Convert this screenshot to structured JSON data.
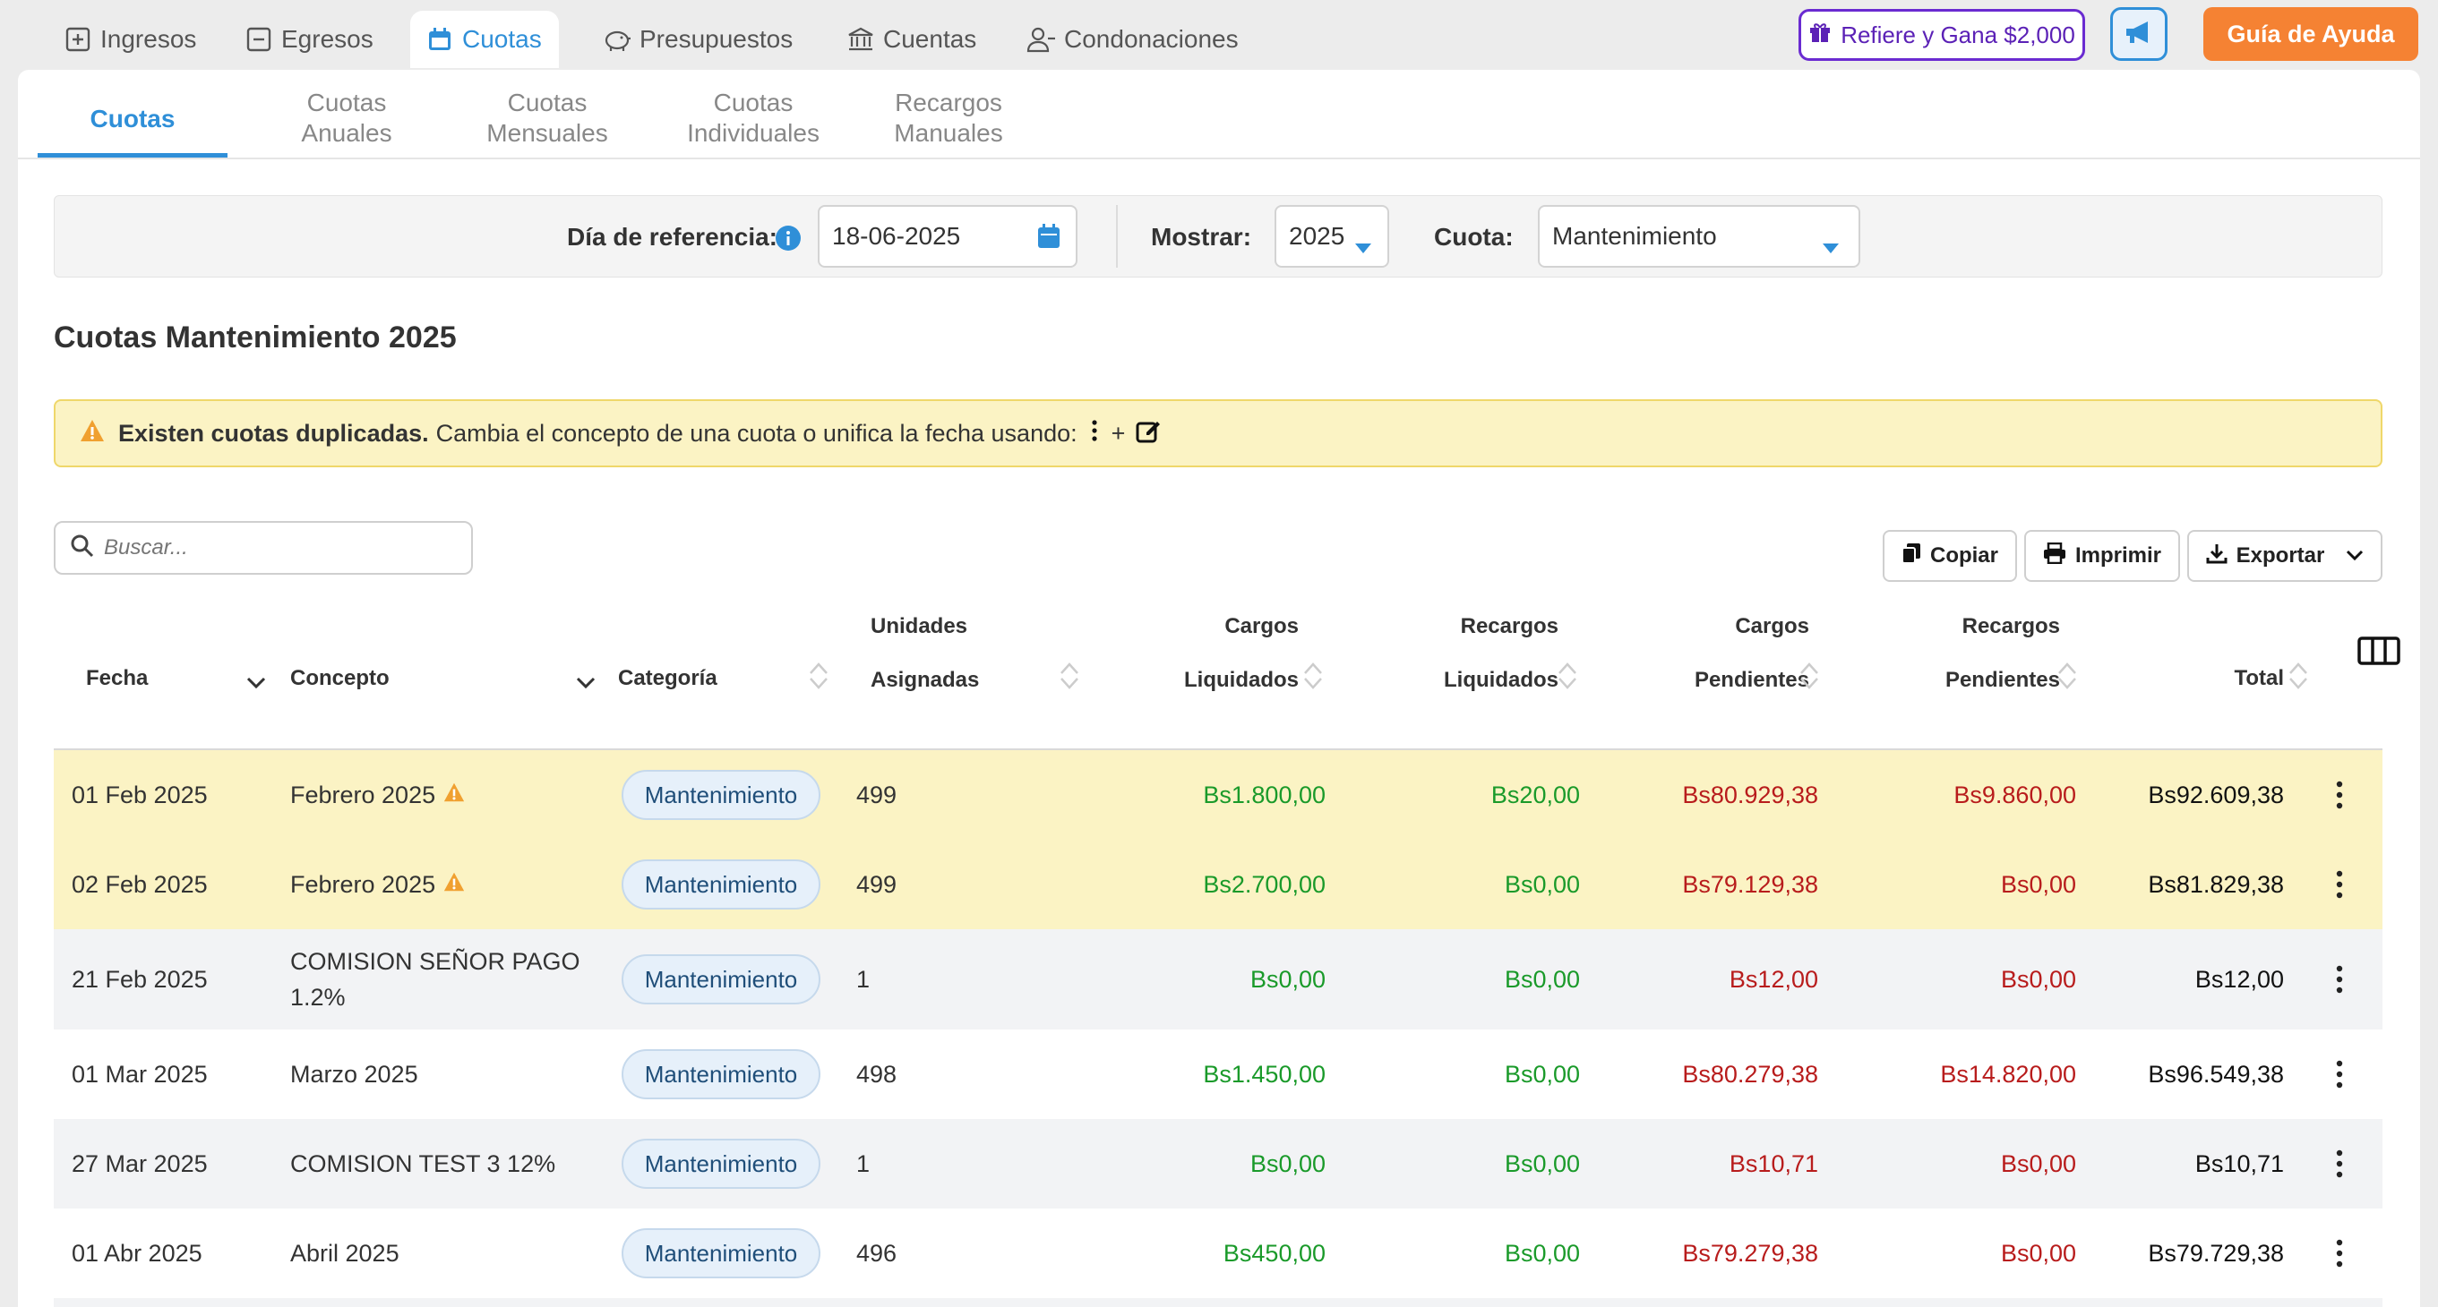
{
  "top_tabs": [
    {
      "label": "Ingresos"
    },
    {
      "label": "Egresos"
    },
    {
      "label": "Cuotas"
    },
    {
      "label": "Presupuestos"
    },
    {
      "label": "Cuentas"
    },
    {
      "label": "Condonaciones"
    }
  ],
  "refer_button": "Refiere y Gana $2,000",
  "help_button": "Guía de Ayuda",
  "sub_tabs": [
    {
      "label": "Cuotas"
    },
    {
      "line1": "Cuotas",
      "line2": "Anuales"
    },
    {
      "line1": "Cuotas",
      "line2": "Mensuales"
    },
    {
      "line1": "Cuotas",
      "line2": "Individuales"
    },
    {
      "line1": "Recargos",
      "line2": "Manuales"
    }
  ],
  "filters": {
    "ref_day_label": "Día de referencia:",
    "ref_day_value": "18-06-2025",
    "show_label": "Mostrar:",
    "show_value": "2025",
    "quota_label": "Cuota:",
    "quota_value": "Mantenimiento"
  },
  "section_title": "Cuotas Mantenimiento 2025",
  "warning": {
    "bold": "Existen cuotas duplicadas.",
    "text": "Cambia el concepto de una cuota o unifica la fecha usando:",
    "plus": "+"
  },
  "search_placeholder": "Buscar...",
  "table_buttons": {
    "copy": "Copiar",
    "print": "Imprimir",
    "export": "Exportar"
  },
  "columns": {
    "fecha": "Fecha",
    "concepto": "Concepto",
    "categoria": "Categoría",
    "unidades1": "Unidades",
    "unidades2": "Asignadas",
    "cargos_liq1": "Cargos",
    "cargos_liq2": "Liquidados",
    "recargos_liq1": "Recargos",
    "recargos_liq2": "Liquidados",
    "cargos_pen1": "Cargos",
    "cargos_pen2": "Pendientes",
    "recargos_pen1": "Recargos",
    "recargos_pen2": "Pendientes",
    "total": "Total"
  },
  "rows": [
    {
      "fecha": "01 Feb 2025",
      "concepto": "Febrero 2025",
      "concepto2": "",
      "categoria": "Mantenimiento",
      "unidades": "499",
      "cargos_liq": "Bs1.800,00",
      "recargos_liq": "Bs20,00",
      "cargos_pen": "Bs80.929,38",
      "recargos_pen": "Bs9.860,00",
      "total": "Bs92.609,38"
    },
    {
      "fecha": "02 Feb 2025",
      "concepto": "Febrero 2025",
      "concepto2": "",
      "categoria": "Mantenimiento",
      "unidades": "499",
      "cargos_liq": "Bs2.700,00",
      "recargos_liq": "Bs0,00",
      "cargos_pen": "Bs79.129,38",
      "recargos_pen": "Bs0,00",
      "total": "Bs81.829,38"
    },
    {
      "fecha": "21 Feb 2025",
      "concepto": "COMISION SEÑOR PAGO",
      "concepto2": "1.2%",
      "categoria": "Mantenimiento",
      "unidades": "1",
      "cargos_liq": "Bs0,00",
      "recargos_liq": "Bs0,00",
      "cargos_pen": "Bs12,00",
      "recargos_pen": "Bs0,00",
      "total": "Bs12,00"
    },
    {
      "fecha": "01 Mar 2025",
      "concepto": "Marzo 2025",
      "concepto2": "",
      "categoria": "Mantenimiento",
      "unidades": "498",
      "cargos_liq": "Bs1.450,00",
      "recargos_liq": "Bs0,00",
      "cargos_pen": "Bs80.279,38",
      "recargos_pen": "Bs14.820,00",
      "total": "Bs96.549,38"
    },
    {
      "fecha": "27 Mar 2025",
      "concepto": "COMISION TEST 3 12%",
      "concepto2": "",
      "categoria": "Mantenimiento",
      "unidades": "1",
      "cargos_liq": "Bs0,00",
      "recargos_liq": "Bs0,00",
      "cargos_pen": "Bs10,71",
      "recargos_pen": "Bs0,00",
      "total": "Bs10,71"
    },
    {
      "fecha": "01 Abr 2025",
      "concepto": "Abril 2025",
      "concepto2": "",
      "categoria": "Mantenimiento",
      "unidades": "496",
      "cargos_liq": "Bs450,00",
      "recargos_liq": "Bs0,00",
      "cargos_pen": "Bs79.279,38",
      "recargos_pen": "Bs0,00",
      "total": "Bs79.729,38"
    }
  ],
  "colors": {
    "accent": "#2f8fd8",
    "duplicate_row": "#fbf3c4",
    "alt_row": "#f2f3f5",
    "positive": "#1a9a2a",
    "negative": "#b81c1c",
    "help": "#f58233",
    "refer": "#6a2bd1"
  }
}
